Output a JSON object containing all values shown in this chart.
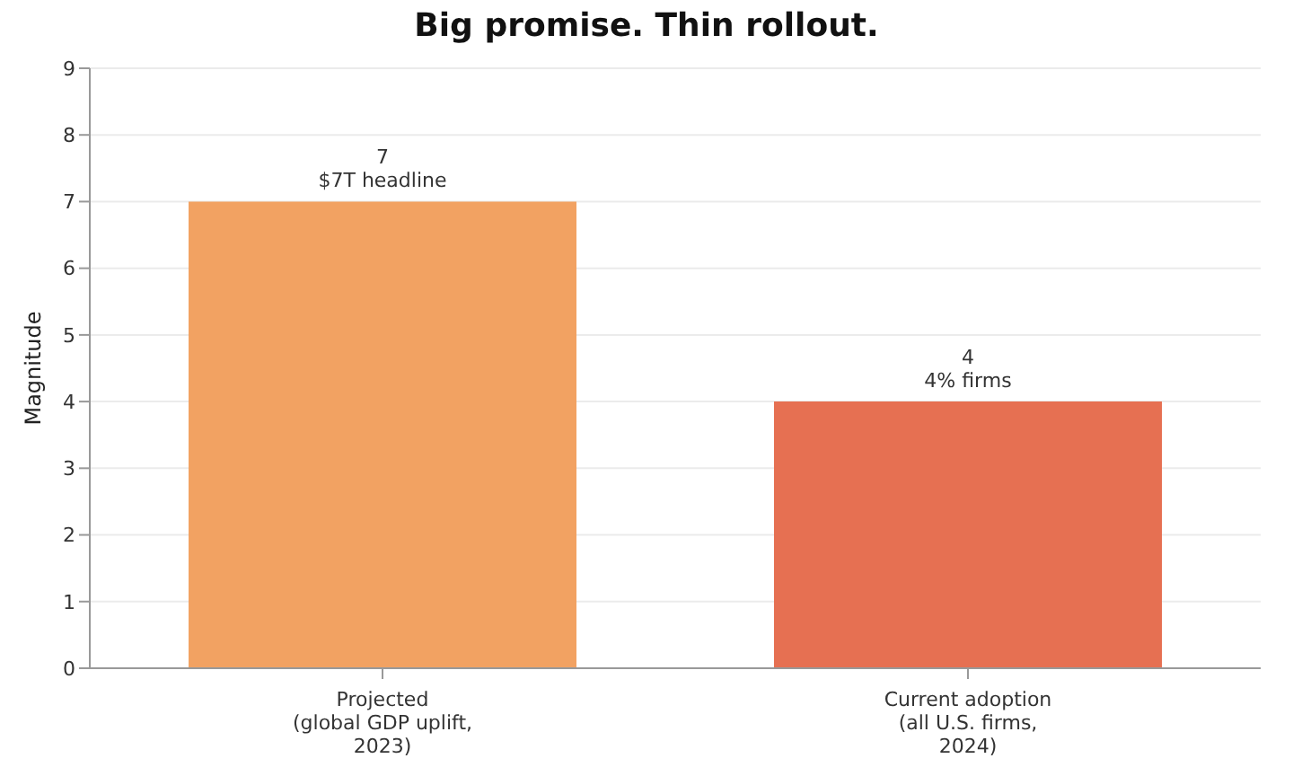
{
  "chart_data": {
    "type": "bar",
    "title": "Big promise. Thin rollout.",
    "ylabel": "Magnitude",
    "categories": [
      "Projected\n(global GDP uplift,\n2023)",
      "Current adoption\n(all U.S. firms,\n2024)"
    ],
    "values": [
      7,
      4
    ],
    "colors": [
      "#f2a262",
      "#e67052"
    ],
    "value_labels": [
      "7\n$7T headline",
      "4\n4% firms"
    ],
    "ylim": [
      0,
      9
    ],
    "yticks": [
      0,
      1,
      2,
      3,
      4,
      5,
      6,
      7,
      8,
      9
    ],
    "grid": "y"
  }
}
